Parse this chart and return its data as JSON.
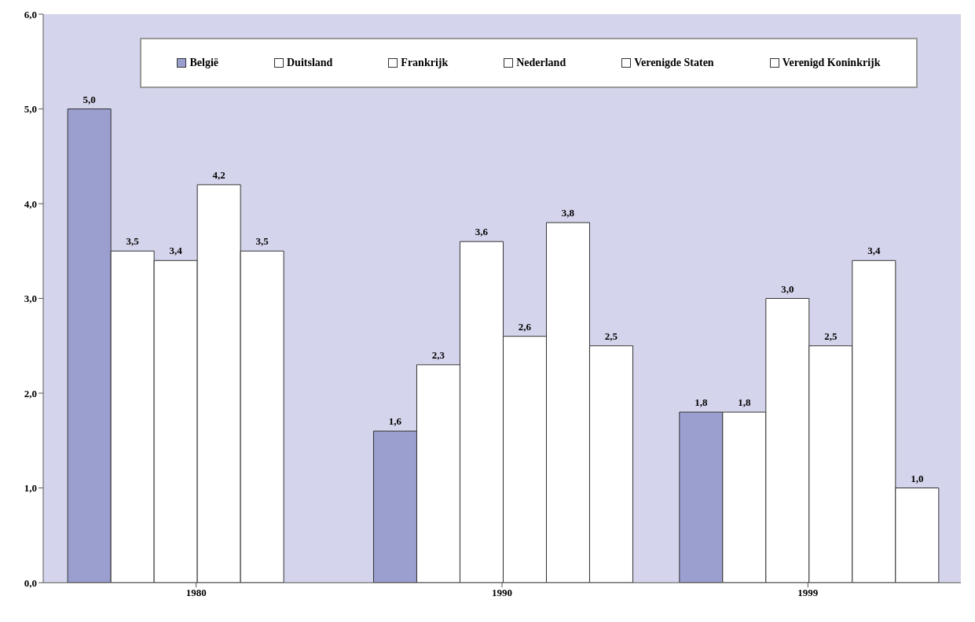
{
  "chart_data": {
    "type": "bar",
    "categories": [
      "1980",
      "1990",
      "1999"
    ],
    "series": [
      {
        "name": "België",
        "color": "#9b9fcf",
        "values": [
          5.0,
          1.6,
          1.8
        ],
        "value_labels": [
          "5,0",
          "1,6",
          "1,8"
        ]
      },
      {
        "name": "Duitsland",
        "color": "#ffffff",
        "values": [
          3.5,
          2.3,
          1.8
        ],
        "value_labels": [
          "3,5",
          "2,3",
          "1,8"
        ]
      },
      {
        "name": "Frankrijk",
        "color": "#ffffff",
        "values": [
          3.4,
          3.6,
          3.0
        ],
        "value_labels": [
          "3,4",
          "3,6",
          "3,0"
        ]
      },
      {
        "name": "Nederland",
        "color": "#ffffff",
        "values": [
          4.2,
          2.6,
          2.5
        ],
        "value_labels": [
          "4,2",
          "2,6",
          "2,5"
        ]
      },
      {
        "name": "Verenigde Staten",
        "color": "#ffffff",
        "values": [
          3.5,
          3.8,
          3.4
        ],
        "value_labels": [
          "3,5",
          "3,8",
          "3,4"
        ]
      },
      {
        "name": "Verenigd Koninkrijk",
        "color": "#ffffff",
        "values": [
          null,
          2.5,
          1.0
        ],
        "value_labels": [
          null,
          "2,5",
          "1,0"
        ]
      }
    ],
    "ylim": [
      0,
      6
    ],
    "yticks": [
      {
        "value": 0,
        "label": "0,0"
      },
      {
        "value": 1,
        "label": "1,0"
      },
      {
        "value": 2,
        "label": "2,0"
      },
      {
        "value": 3,
        "label": "3,0"
      },
      {
        "value": 4,
        "label": "4,0"
      },
      {
        "value": 5,
        "label": "5,0"
      },
      {
        "value": 6,
        "label": "6,0"
      }
    ],
    "grid": false,
    "legend": "top"
  }
}
